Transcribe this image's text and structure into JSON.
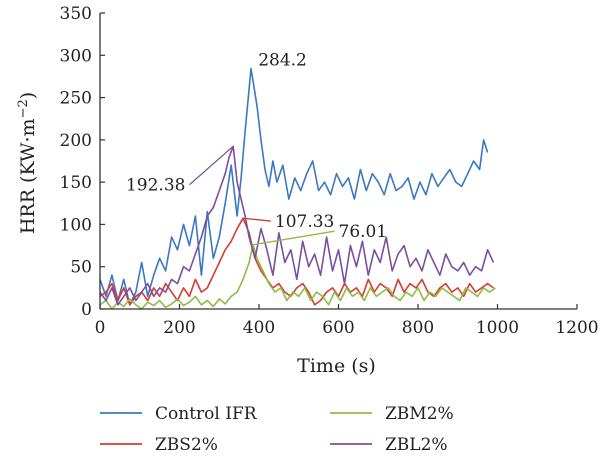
{
  "chart_data": {
    "type": "line",
    "xlabel": "Time (s)",
    "ylabel": {
      "prefix": "HRR (KW·m",
      "sup": "−2",
      "suffix": ")"
    },
    "xlim": [
      0,
      1200
    ],
    "ylim": [
      0,
      350
    ],
    "xticks": [
      0,
      200,
      400,
      600,
      800,
      1000,
      1200
    ],
    "yticks": [
      0,
      50,
      100,
      150,
      200,
      250,
      300,
      350
    ],
    "grid": false,
    "legend_position": "bottom",
    "series": [
      {
        "name": "Control IFR",
        "color": "#3a78c4",
        "x": [
          0,
          15,
          30,
          45,
          60,
          75,
          90,
          105,
          120,
          135,
          150,
          165,
          180,
          195,
          210,
          225,
          240,
          255,
          270,
          285,
          300,
          315,
          330,
          345,
          355,
          365,
          375,
          380,
          385,
          395,
          405,
          415,
          425,
          435,
          445,
          460,
          475,
          490,
          505,
          520,
          535,
          550,
          565,
          580,
          595,
          610,
          625,
          640,
          655,
          670,
          685,
          700,
          715,
          730,
          745,
          760,
          775,
          790,
          805,
          820,
          835,
          850,
          865,
          880,
          895,
          910,
          925,
          940,
          955,
          965,
          975
        ],
        "values": [
          35,
          15,
          40,
          10,
          35,
          5,
          20,
          55,
          15,
          40,
          60,
          45,
          85,
          70,
          100,
          75,
          110,
          40,
          115,
          60,
          85,
          125,
          170,
          110,
          155,
          210,
          260,
          284.2,
          270,
          240,
          200,
          165,
          145,
          175,
          150,
          170,
          130,
          155,
          140,
          160,
          175,
          140,
          150,
          135,
          160,
          145,
          155,
          130,
          165,
          140,
          160,
          150,
          135,
          160,
          140,
          145,
          155,
          130,
          150,
          135,
          160,
          145,
          155,
          165,
          150,
          145,
          160,
          175,
          165,
          200,
          185
        ]
      },
      {
        "name": "ZBS2%",
        "color": "#d93a2f",
        "x": [
          0,
          15,
          30,
          45,
          60,
          75,
          90,
          105,
          120,
          135,
          150,
          165,
          180,
          195,
          210,
          225,
          240,
          255,
          270,
          285,
          300,
          315,
          330,
          345,
          360,
          375,
          390,
          405,
          420,
          435,
          450,
          465,
          480,
          495,
          510,
          525,
          540,
          555,
          570,
          585,
          600,
          615,
          630,
          645,
          660,
          675,
          690,
          705,
          720,
          735,
          750,
          765,
          780,
          795,
          810,
          825,
          840,
          855,
          870,
          885,
          900,
          915,
          930,
          945,
          960,
          975,
          990
        ],
        "values": [
          15,
          20,
          30,
          10,
          25,
          5,
          15,
          20,
          10,
          25,
          15,
          30,
          20,
          10,
          25,
          15,
          35,
          20,
          25,
          40,
          55,
          70,
          80,
          95,
          107.33,
          90,
          60,
          45,
          35,
          25,
          30,
          20,
          15,
          25,
          30,
          20,
          5,
          10,
          20,
          25,
          15,
          30,
          20,
          25,
          15,
          35,
          20,
          30,
          25,
          15,
          35,
          20,
          30,
          25,
          35,
          20,
          15,
          25,
          30,
          20,
          25,
          15,
          30,
          20,
          25,
          30,
          25
        ]
      },
      {
        "name": "ZBM2%",
        "color": "#8fbc46",
        "x": [
          0,
          15,
          30,
          45,
          60,
          75,
          90,
          105,
          120,
          135,
          150,
          165,
          180,
          195,
          210,
          225,
          240,
          255,
          270,
          285,
          300,
          315,
          330,
          345,
          360,
          375,
          385,
          395,
          410,
          425,
          440,
          455,
          470,
          485,
          500,
          515,
          530,
          545,
          560,
          575,
          590,
          605,
          620,
          635,
          650,
          665,
          680,
          695,
          710,
          725,
          740,
          755,
          770,
          785,
          800,
          815,
          830,
          845,
          860,
          875,
          890,
          905,
          920,
          935,
          950,
          965,
          980,
          995
        ],
        "values": [
          5,
          10,
          0,
          8,
          3,
          12,
          5,
          0,
          8,
          4,
          10,
          2,
          6,
          12,
          4,
          8,
          15,
          5,
          10,
          3,
          12,
          6,
          15,
          20,
          35,
          55,
          76.01,
          60,
          45,
          30,
          20,
          25,
          10,
          20,
          15,
          25,
          10,
          20,
          15,
          5,
          20,
          10,
          25,
          15,
          20,
          10,
          25,
          15,
          20,
          25,
          15,
          10,
          20,
          15,
          25,
          10,
          20,
          15,
          25,
          20,
          15,
          10,
          25,
          20,
          15,
          25,
          20,
          25
        ]
      },
      {
        "name": "ZBL2%",
        "color": "#7b4fa0",
        "x": [
          0,
          15,
          30,
          45,
          60,
          75,
          90,
          105,
          120,
          135,
          150,
          165,
          180,
          195,
          210,
          225,
          240,
          255,
          270,
          285,
          300,
          315,
          325,
          335,
          345,
          355,
          365,
          375,
          390,
          405,
          420,
          435,
          450,
          465,
          480,
          495,
          510,
          525,
          540,
          555,
          570,
          585,
          600,
          615,
          630,
          645,
          660,
          675,
          690,
          705,
          720,
          735,
          750,
          765,
          780,
          795,
          810,
          825,
          840,
          855,
          870,
          885,
          900,
          915,
          930,
          945,
          960,
          975,
          990
        ],
        "values": [
          20,
          10,
          25,
          5,
          15,
          25,
          10,
          20,
          30,
          15,
          25,
          20,
          35,
          30,
          50,
          45,
          65,
          85,
          110,
          120,
          140,
          160,
          180,
          192.38,
          150,
          130,
          110,
          85,
          60,
          95,
          70,
          40,
          90,
          55,
          70,
          35,
          80,
          50,
          65,
          40,
          85,
          45,
          70,
          30,
          75,
          50,
          80,
          40,
          70,
          55,
          85,
          45,
          65,
          75,
          50,
          60,
          45,
          70,
          55,
          40,
          65,
          50,
          45,
          55,
          40,
          50,
          45,
          70,
          55
        ]
      }
    ],
    "annotations": [
      {
        "text": "284.2",
        "series": "Control IFR",
        "x": 380,
        "y": 284.2,
        "label_x": 398,
        "label_y": 295,
        "anchor": "start",
        "leader": false
      },
      {
        "text": "192.38",
        "series": "ZBL2%",
        "x": 335,
        "y": 192.38,
        "label_x": 215,
        "label_y": 147,
        "anchor": "end",
        "leader": true
      },
      {
        "text": "107.33",
        "series": "ZBS2%",
        "x": 360,
        "y": 107.33,
        "label_x": 440,
        "label_y": 104,
        "anchor": "start",
        "leader": true
      },
      {
        "text": "76.01",
        "series": "ZBM2%",
        "x": 385,
        "y": 76.01,
        "label_x": 600,
        "label_y": 92,
        "anchor": "start",
        "leader": true
      }
    ]
  }
}
